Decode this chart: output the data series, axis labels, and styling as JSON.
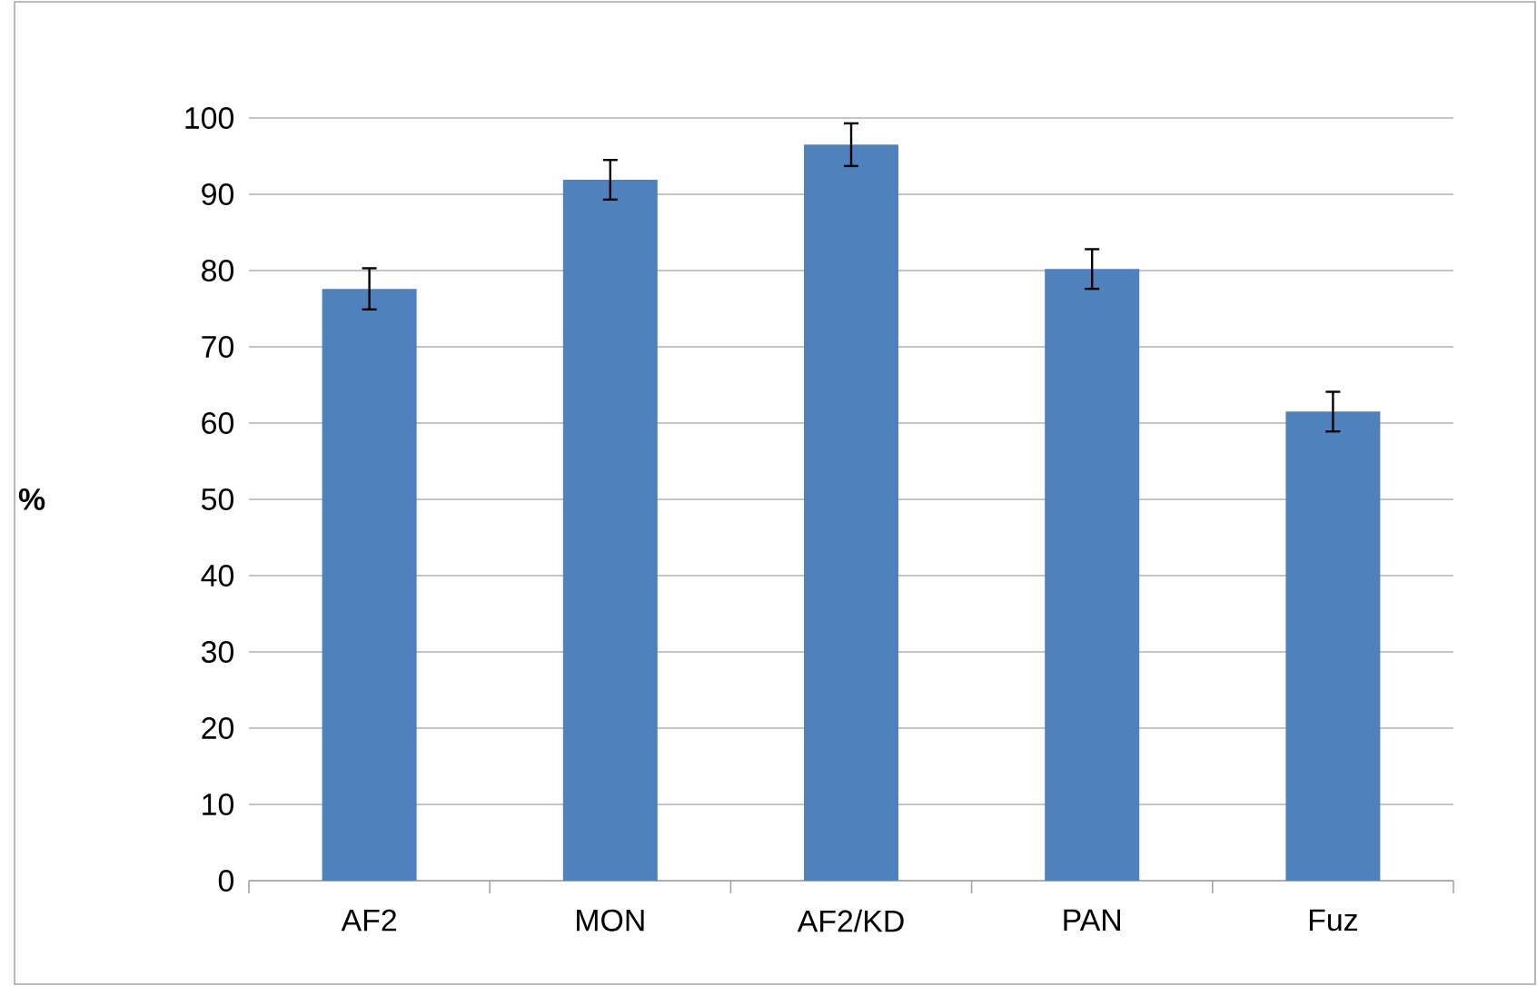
{
  "chart_data": {
    "type": "bar",
    "ylabel": "%",
    "categories": [
      "AF2",
      "MON",
      "AF2/KD",
      "PAN",
      "Fuz"
    ],
    "values": [
      77.6,
      91.9,
      96.5,
      80.2,
      61.5
    ],
    "errors": [
      2.7,
      2.6,
      2.8,
      2.6,
      2.6
    ],
    "color": "#4f81bd",
    "ylim": [
      0,
      100
    ],
    "yticks": [
      0,
      10,
      20,
      30,
      40,
      50,
      60,
      70,
      80,
      90,
      100
    ],
    "grid": "y"
  }
}
